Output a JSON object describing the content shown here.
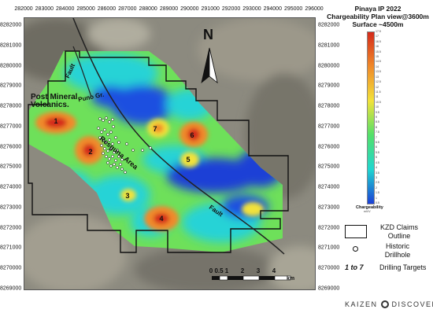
{
  "map": {
    "title_lines": [
      "Pinaya IP 2022",
      "Chargeability Plan view@3600m",
      "Surface ~4500m"
    ],
    "x_ticks": [
      "282000",
      "283000",
      "284000",
      "285000",
      "286000",
      "287000",
      "288000",
      "289000",
      "290000",
      "291000",
      "292000",
      "293000",
      "294000",
      "295000",
      "296000"
    ],
    "y_ticks": [
      "8282000",
      "8281000",
      "8280000",
      "8279000",
      "8278000",
      "8277000",
      "8276000",
      "8275000",
      "8274000",
      "8273000",
      "8272000",
      "8271000",
      "8270000",
      "8269000"
    ],
    "labels": {
      "fault_upper": "Fault",
      "fault_lower": "Fault",
      "post_mineral": "Post Mineral",
      "volcanics": "Volcanics",
      "puno": "Puno Gr.",
      "resguna": "Resguna Area"
    },
    "targets": [
      "1",
      "2",
      "3",
      "4",
      "5",
      "6",
      "7"
    ],
    "north_label": "N",
    "scale_labels": [
      "0",
      "0.5",
      "1",
      "2",
      "3",
      "4"
    ],
    "scale_unit": "km"
  },
  "legend": {
    "colorbar_values": [
      "17.5",
      "17",
      "16.5",
      "16",
      "15.5",
      "15",
      "14.5",
      "14",
      "13.5",
      "13",
      "12.5",
      "12",
      "11.5",
      "11",
      "10.5",
      "10",
      "9.5",
      "9",
      "8.5",
      "8",
      "7.5",
      "7",
      "6.5",
      "6",
      "5.5",
      "5",
      "4.5",
      "4",
      "3.5",
      "3",
      "2.5",
      "2",
      "1.5",
      "1",
      "0.5"
    ],
    "colorbar_label": "Chargeability",
    "colorbar_unit": "mV/V",
    "claims_line1": "KZD Claims",
    "claims_line2": "Outline",
    "drill_line1": "Historic",
    "drill_line2": "Drillhole",
    "targets_symbol": "1 to 7",
    "targets_text": "Drilling Targets",
    "brand": "KAIZEN",
    "brand2": "DISCOVERY"
  },
  "colors": {
    "low": "#1b3fd6",
    "mid": "#20d6d0",
    "green": "#53e06a",
    "yellow": "#f2e23a",
    "orange": "#f08a2a",
    "high": "#d42a1a"
  }
}
